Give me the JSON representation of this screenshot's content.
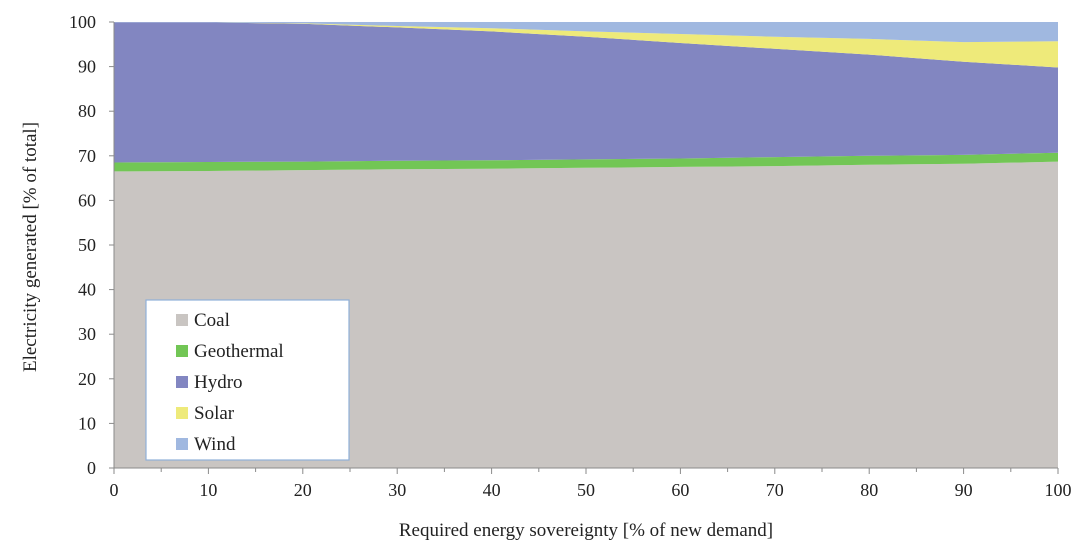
{
  "chart_data": {
    "type": "area",
    "stacked": true,
    "xlabel": "Required energy sovereignty [% of new  demand]",
    "ylabel": "Electricity  generated [% of total]",
    "xlim": [
      0,
      100
    ],
    "ylim": [
      0,
      100
    ],
    "x_ticks": [
      0,
      10,
      20,
      30,
      40,
      50,
      60,
      70,
      80,
      90,
      100
    ],
    "y_ticks": [
      0,
      10,
      20,
      30,
      40,
      50,
      60,
      70,
      80,
      90,
      100
    ],
    "grid": false,
    "legend_position": "bottom-left",
    "x": [
      0,
      10,
      20,
      30,
      40,
      50,
      60,
      70,
      80,
      90,
      100
    ],
    "series": [
      {
        "name": "Coal",
        "color": "#c9c5c2",
        "values": [
          66.5,
          66.6,
          66.8,
          67.0,
          67.1,
          67.3,
          67.5,
          67.7,
          68.0,
          68.2,
          68.7
        ]
      },
      {
        "name": "Geothermal",
        "color": "#72c655",
        "values": [
          2.0,
          2.0,
          1.9,
          1.9,
          1.9,
          1.9,
          1.9,
          2.0,
          2.0,
          2.0,
          2.0
        ]
      },
      {
        "name": "Hydro",
        "color": "#8286c1",
        "values": [
          31.4,
          31.3,
          30.9,
          29.9,
          28.9,
          27.5,
          25.9,
          24.3,
          22.7,
          20.9,
          19.1
        ]
      },
      {
        "name": "Solar",
        "color": "#eeea7a",
        "values": [
          0.0,
          0.0,
          0.1,
          0.3,
          0.7,
          1.2,
          2.0,
          2.7,
          3.5,
          4.4,
          5.9
        ]
      },
      {
        "name": "Wind",
        "color": "#a0b8e0",
        "values": [
          0.1,
          0.1,
          0.3,
          0.9,
          1.4,
          2.1,
          2.7,
          3.3,
          3.8,
          4.5,
          4.3
        ]
      }
    ]
  }
}
